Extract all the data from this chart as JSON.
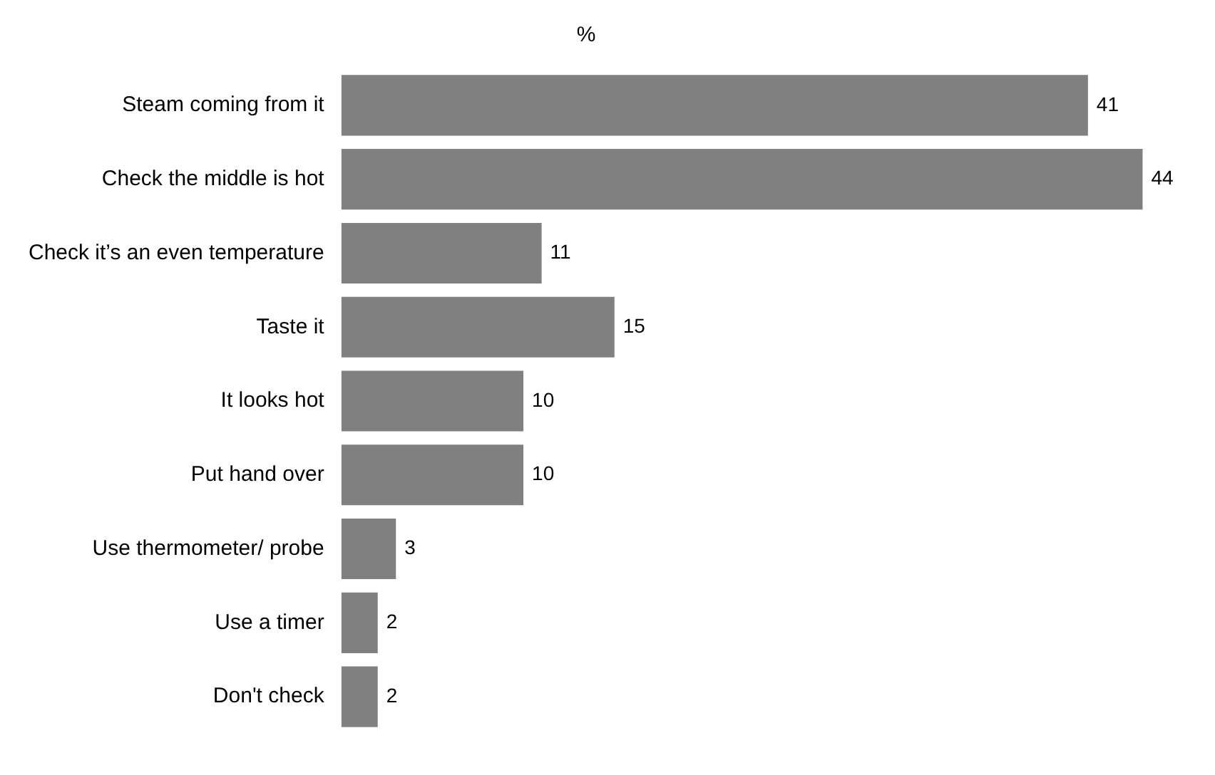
{
  "chart_data": {
    "type": "bar",
    "orientation": "horizontal",
    "title": "%",
    "categories": [
      "Steam coming from it",
      "Check the middle is hot",
      "Check it’s an even temperature",
      "Taste it",
      "It looks hot",
      "Put hand over",
      "Use thermometer/ probe",
      "Use a timer",
      "Don't check"
    ],
    "values": [
      41,
      44,
      11,
      15,
      10,
      10,
      3,
      2,
      2
    ],
    "color": "#808080",
    "data_labels": true,
    "legend": false
  }
}
